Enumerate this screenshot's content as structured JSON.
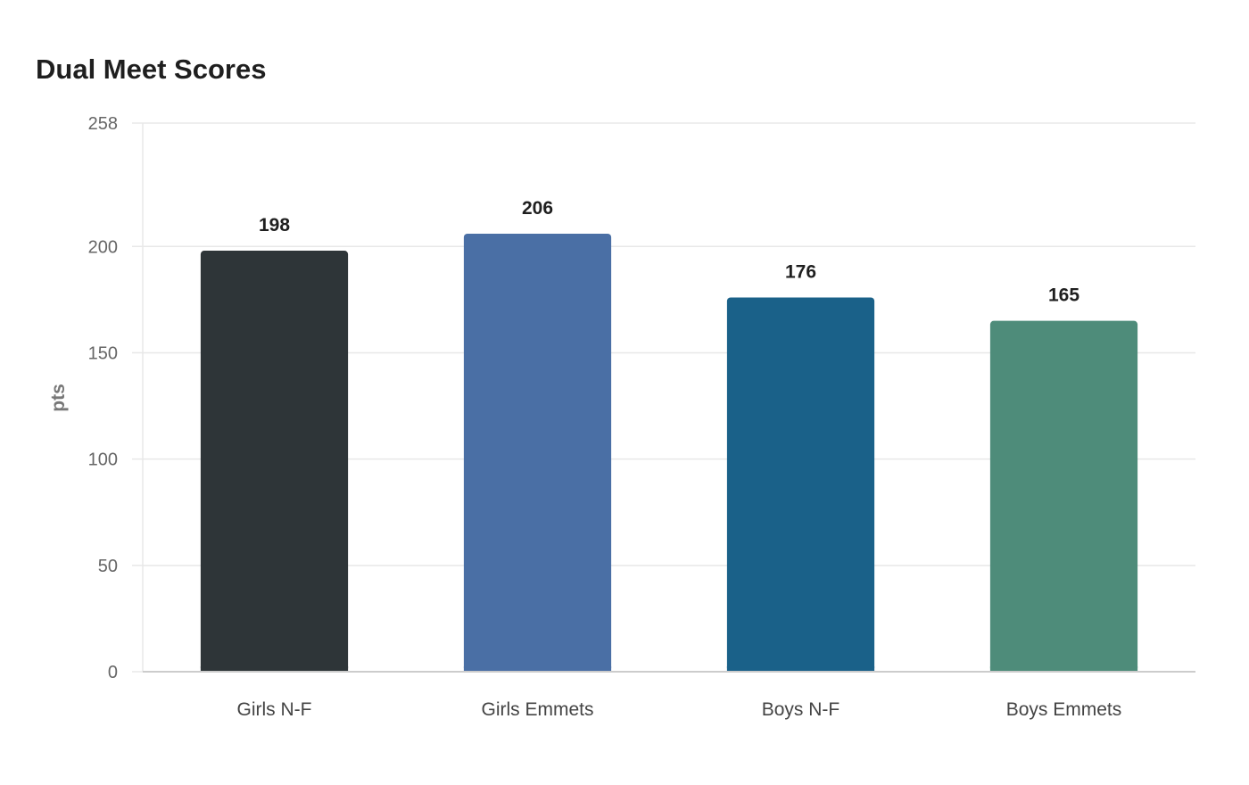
{
  "chart_data": {
    "type": "bar",
    "title": "Dual Meet Scores",
    "xlabel": "",
    "ylabel": "pts",
    "ylim": [
      0,
      258
    ],
    "yticks": [
      0,
      50,
      100,
      150,
      200,
      258
    ],
    "grid": true,
    "categories": [
      "Girls N-F",
      "Girls Emmets",
      "Boys N-F",
      "Boys Emmets"
    ],
    "values": [
      198,
      206,
      176,
      165
    ],
    "colors": [
      "#2e3538",
      "#4a6fa5",
      "#1a6189",
      "#4e8c7a"
    ]
  },
  "style": {
    "grid_color": "#e8e8e8",
    "axis_color": "#cccccc"
  }
}
